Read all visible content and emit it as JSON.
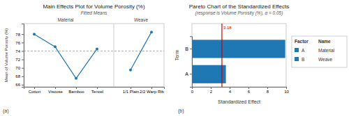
{
  "chart_data": [
    {
      "type": "line",
      "title": "Main Effects Plot for Volume Porosity (%)",
      "subtitle": "Fitted Means",
      "ylabel": "Mean of Volume Porosity (%)",
      "categories": [
        "Cotton",
        "Viscose",
        "Bamboo",
        "Tencel",
        "1/1 Plain",
        "2/2 Warp Rib"
      ],
      "series": [
        {
          "name": "Material",
          "values": [
            78.0,
            75.0,
            67.5,
            74.5,
            null,
            null
          ],
          "marker": "circle"
        },
        {
          "name": "Weave",
          "values": [
            null,
            null,
            null,
            null,
            69.5,
            78.5
          ],
          "marker": "circle"
        }
      ],
      "grand_mean": 74.0,
      "ylim": [
        65.5,
        80.5
      ],
      "yticks": [
        66,
        68,
        70,
        72,
        74,
        76,
        78
      ],
      "grid": false,
      "panel_label": "(a)"
    },
    {
      "type": "bar",
      "orientation": "horizontal",
      "title": "Pareto Chart of the Standardized Effects",
      "subtitle": "(response is Volume Porosity (%), α = 0.05)",
      "xlabel": "Standardized Effect",
      "ylabel": "Term",
      "categories": [
        "A",
        "B"
      ],
      "values": [
        3.6,
        9.9
      ],
      "xlim": [
        0,
        10
      ],
      "xticks": [
        0,
        2,
        4,
        6,
        8,
        10
      ],
      "reference_line": {
        "value": 3.18,
        "label": "3.18",
        "color": "#cc0000"
      },
      "factor_table": {
        "header": [
          "Factor",
          "Name"
        ],
        "factor": [
          "A",
          "B"
        ],
        "name": [
          "Material",
          "Weave"
        ]
      },
      "grid": false,
      "panel_label": "(b)"
    }
  ]
}
